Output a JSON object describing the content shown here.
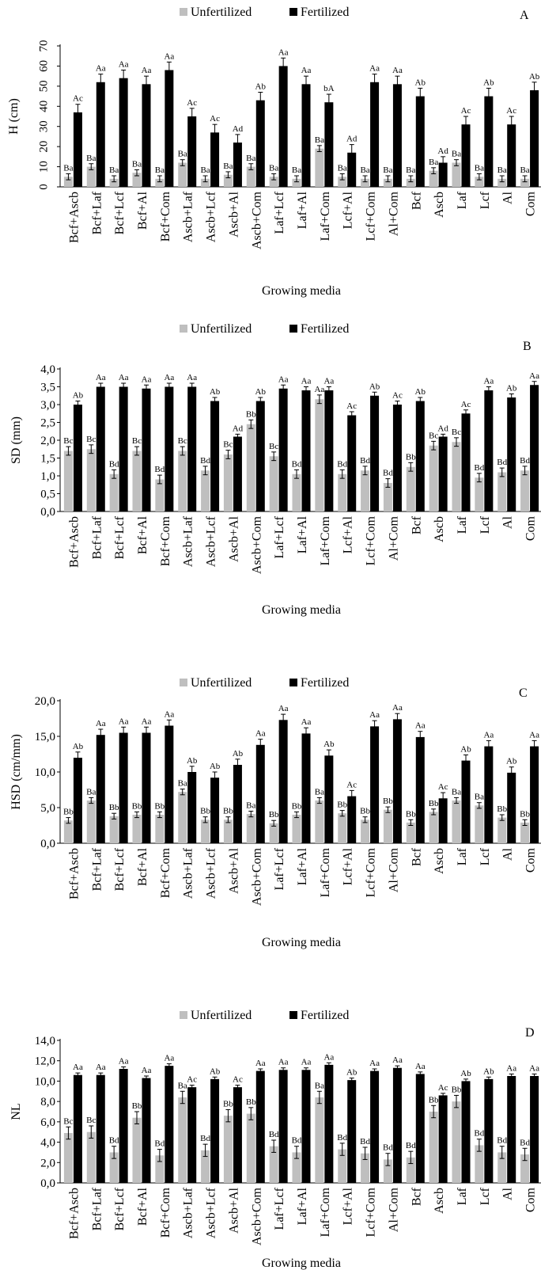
{
  "legend": {
    "unfertilized": "Unfertilized",
    "fertilized": "Fertilized"
  },
  "colors": {
    "unfertilized": "#bfbfbf",
    "fertilized": "#000000",
    "axis": "#000000"
  },
  "chart_data": [
    {
      "type": "bar",
      "title": "A",
      "xlabel": "Growing media",
      "ylabel": "H (cm)",
      "ylim": [
        0,
        70
      ],
      "yticks": [
        "0",
        "10",
        "20",
        "30",
        "40",
        "50",
        "60",
        "70"
      ],
      "legend_position": "top",
      "categories": [
        "Bcf+Ascb",
        "Bcf+Laf",
        "Bcf+Lcf",
        "Bcf+Al",
        "Bcf+Com",
        "Ascb+Laf",
        "Ascb+Lcf",
        "Ascb+Al",
        "Ascb+Com",
        "Laf+Lcf",
        "Laf+Al",
        "Laf+Com",
        "Lcf+Al",
        "Lcf+Com",
        "Al+Com",
        "Bcf",
        "Ascb",
        "Laf",
        "Lcf",
        "Al",
        "Com"
      ],
      "series": [
        {
          "name": "Unfertilized",
          "values": [
            5,
            10,
            4,
            7,
            4,
            12,
            4,
            6,
            10,
            5,
            4,
            19,
            5,
            4,
            4,
            4,
            8,
            12,
            5,
            4,
            4
          ],
          "errors": [
            1.5,
            1.5,
            1.5,
            1.5,
            1.5,
            1.5,
            1.5,
            1.5,
            1.5,
            1.5,
            1.5,
            1.5,
            1.5,
            1.5,
            1.5,
            1.5,
            1.5,
            1.5,
            1.5,
            1.5,
            1.5
          ],
          "labels": [
            "Ba",
            "Ba",
            "Ba",
            "Ba",
            "Ba",
            "Ba",
            "Ba",
            "Ba",
            "Ba",
            "Ba",
            "Ba",
            "Ba",
            "Ba",
            "Ba",
            "Ba",
            "Ba",
            "Ba",
            "Ba",
            "Ba",
            "Ba",
            "Ba"
          ]
        },
        {
          "name": "Fertilized",
          "values": [
            37,
            52,
            54,
            51,
            58,
            35,
            27,
            22,
            43,
            60,
            51,
            42,
            17,
            52,
            51,
            45,
            12,
            31,
            45,
            31,
            48
          ],
          "errors": [
            4,
            4,
            4,
            4,
            4,
            4,
            4,
            4,
            4,
            4,
            4,
            4,
            4,
            4,
            4,
            4,
            3,
            4,
            4,
            4,
            4
          ],
          "labels": [
            "Ac",
            "Aa",
            "Aa",
            "Aa",
            "Aa",
            "Ac",
            "Ac",
            "Ad",
            "Ab",
            "Aa",
            "Aa",
            "bA",
            "Ad",
            "Aa",
            "Aa",
            "Ab",
            "Ad",
            "Ac",
            "Ab",
            "Ac",
            "Ab"
          ]
        }
      ]
    },
    {
      "type": "bar",
      "title": "B",
      "xlabel": "Growing media",
      "ylabel": "SD (mm)",
      "ylim": [
        0,
        4
      ],
      "yticks": [
        "0,0",
        "0,5",
        "1,0",
        "1,5",
        "2,0",
        "2,5",
        "3,0",
        "3,5",
        "4,0"
      ],
      "legend_position": "top",
      "categories": [
        "Bcf+Ascb",
        "Bcf+Laf",
        "Bcf+Lcf",
        "Bcf+Al",
        "Bcf+Com",
        "Ascb+Laf",
        "Ascb+Lcf",
        "Ascb+Al",
        "Ascb+Com",
        "Laf+Lcf",
        "Laf+Al",
        "Laf+Com",
        "Lcf+Al",
        "Lcf+Com",
        "Al+Com",
        "Bcf",
        "Ascb",
        "Laf",
        "Lcf",
        "Al",
        "Com"
      ],
      "series": [
        {
          "name": "Unfertilized",
          "values": [
            1.7,
            1.75,
            1.05,
            1.7,
            0.9,
            1.7,
            1.15,
            1.6,
            2.45,
            1.55,
            1.05,
            3.15,
            1.05,
            1.15,
            0.8,
            1.25,
            1.85,
            1.95,
            0.95,
            1.1,
            1.15
          ],
          "errors": [
            0.12,
            0.12,
            0.12,
            0.12,
            0.12,
            0.12,
            0.12,
            0.12,
            0.12,
            0.12,
            0.12,
            0.12,
            0.12,
            0.12,
            0.12,
            0.12,
            0.12,
            0.12,
            0.12,
            0.12,
            0.12
          ],
          "labels": [
            "Bc",
            "Bc",
            "Bd",
            "Bc",
            "Bd",
            "Bc",
            "Bd",
            "Bc",
            "Bb",
            "Bc",
            "Bd",
            "Aa",
            "Bd",
            "Bd",
            "Bd",
            "Bb",
            "Bc",
            "Bc",
            "Bd",
            "Bd",
            "Bd"
          ]
        },
        {
          "name": "Fertilized",
          "values": [
            3.0,
            3.5,
            3.5,
            3.45,
            3.5,
            3.5,
            3.1,
            2.1,
            3.1,
            3.45,
            3.4,
            3.4,
            2.7,
            3.25,
            3.0,
            3.1,
            2.1,
            2.75,
            3.4,
            3.2,
            3.55
          ],
          "errors": [
            0.1,
            0.1,
            0.1,
            0.1,
            0.1,
            0.1,
            0.1,
            0.07,
            0.1,
            0.1,
            0.1,
            0.1,
            0.1,
            0.1,
            0.1,
            0.1,
            0.07,
            0.1,
            0.1,
            0.1,
            0.1
          ],
          "labels": [
            "Ab",
            "Aa",
            "Aa",
            "Aa",
            "Aa",
            "Aa",
            "Ab",
            "Ad",
            "Ab",
            "Aa",
            "Aa",
            "Aa",
            "Ac",
            "Ab",
            "Ac",
            "Ab",
            "Ad",
            "Ac",
            "Aa",
            "Ab",
            "Aa"
          ]
        }
      ]
    },
    {
      "type": "bar",
      "title": "C",
      "xlabel": "Growing media",
      "ylabel": "HSD (cm/mm)",
      "ylim": [
        0,
        20
      ],
      "yticks": [
        "0,0",
        "5,0",
        "10,0",
        "15,0",
        "20,0"
      ],
      "legend_position": "top",
      "categories": [
        "Bcf+Ascb",
        "Bcf+Laf",
        "Bcf+Lcf",
        "Bcf+Al",
        "Bcf+Com",
        "Ascb+Laf",
        "Ascb+Lcf",
        "Ascb+Al",
        "Ascb+Com",
        "Laf+Lcf",
        "Laf+Al",
        "Laf+Com",
        "Lcf+Al",
        "Lcf+Com",
        "Al+Com",
        "Bcf",
        "Ascb",
        "Laf",
        "Lcf",
        "Al",
        "Com"
      ],
      "series": [
        {
          "name": "Unfertilized",
          "values": [
            3.2,
            6.0,
            3.8,
            4.0,
            4.0,
            7.2,
            3.3,
            3.3,
            4.1,
            2.8,
            4.0,
            6.0,
            4.2,
            3.3,
            4.7,
            2.9,
            4.4,
            6.0,
            5.3,
            3.6,
            2.9
          ],
          "errors": [
            0.4,
            0.4,
            0.4,
            0.4,
            0.4,
            0.4,
            0.4,
            0.4,
            0.4,
            0.4,
            0.4,
            0.4,
            0.4,
            0.4,
            0.4,
            0.4,
            0.4,
            0.4,
            0.4,
            0.4,
            0.4
          ],
          "labels": [
            "Bb",
            "Ba",
            "Bb",
            "Bb",
            "Bb",
            "Ba",
            "Bb",
            "Bb",
            "Ba",
            "Bb",
            "Bb",
            "Ba",
            "Bb",
            "Bb",
            "Bb",
            "Bb",
            "Bb",
            "Ba",
            "Ba",
            "Bb",
            "Bb"
          ]
        },
        {
          "name": "Fertilized",
          "values": [
            12.0,
            15.2,
            15.5,
            15.5,
            16.5,
            10.0,
            9.2,
            11.0,
            13.8,
            17.3,
            15.4,
            12.3,
            6.6,
            16.4,
            17.4,
            14.9,
            6.3,
            11.6,
            13.6,
            9.9,
            13.6
          ],
          "errors": [
            0.8,
            0.8,
            0.8,
            0.8,
            0.8,
            0.8,
            0.8,
            0.8,
            0.8,
            0.8,
            0.8,
            0.8,
            0.8,
            0.8,
            0.8,
            0.8,
            0.8,
            0.8,
            0.8,
            0.8,
            0.8
          ],
          "labels": [
            "Ab",
            "Aa",
            "Aa",
            "Aa",
            "Aa",
            "Ab",
            "Ab",
            "Ab",
            "Aa",
            "Aa",
            "Aa",
            "Ab",
            "Ac",
            "Aa",
            "Aa",
            "Aa",
            "Ac",
            "Ab",
            "Aa",
            "Ab",
            "Aa"
          ]
        }
      ]
    },
    {
      "type": "bar",
      "title": "D",
      "xlabel": "Growing media",
      "ylabel": "NL",
      "ylim": [
        0,
        14
      ],
      "yticks": [
        "0,0",
        "2,0",
        "4,0",
        "6,0",
        "8,0",
        "10,0",
        "12,0",
        "14,0"
      ],
      "legend_position": "top",
      "categories": [
        "Bcf+Ascb",
        "Bcf+Laf",
        "Bcf+Lcf",
        "Bcf+Al",
        "Bcf+Com",
        "Ascb+Laf",
        "Ascb+Lcf",
        "Ascb+Al",
        "Ascb+Com",
        "Laf+Lcf",
        "Laf+Al",
        "Laf+Com",
        "Lcf+Al",
        "Lcf+Com",
        "Al+Com",
        "Bcf",
        "Ascb",
        "Laf",
        "Lcf",
        "Al",
        "Com"
      ],
      "series": [
        {
          "name": "Unfertilized",
          "values": [
            4.9,
            5.0,
            3.0,
            6.4,
            2.7,
            8.4,
            3.2,
            6.6,
            6.8,
            3.6,
            3.0,
            8.4,
            3.3,
            2.9,
            2.3,
            2.5,
            7.0,
            8.0,
            3.7,
            3.0,
            2.8
          ],
          "errors": [
            0.6,
            0.6,
            0.6,
            0.6,
            0.6,
            0.6,
            0.6,
            0.6,
            0.6,
            0.6,
            0.6,
            0.6,
            0.6,
            0.6,
            0.6,
            0.6,
            0.6,
            0.6,
            0.6,
            0.6,
            0.6
          ],
          "labels": [
            "Bc",
            "Bc",
            "Bd",
            "Bb",
            "Bd",
            "Ba",
            "Bd",
            "Bb",
            "Bb",
            "Bd",
            "Bd",
            "Ba",
            "Bd",
            "Bd",
            "Bd",
            "Bd",
            "Bb",
            "Bb",
            "Bd",
            "Bd",
            "Bd"
          ]
        },
        {
          "name": "Fertilized",
          "values": [
            10.6,
            10.6,
            11.2,
            10.3,
            11.5,
            9.4,
            10.2,
            9.4,
            11.0,
            11.1,
            11.1,
            11.6,
            10.1,
            11.0,
            11.3,
            10.7,
            8.6,
            10.0,
            10.2,
            10.5,
            10.5
          ],
          "errors": [
            0.2,
            0.2,
            0.2,
            0.2,
            0.2,
            0.2,
            0.2,
            0.2,
            0.2,
            0.2,
            0.2,
            0.2,
            0.2,
            0.2,
            0.2,
            0.2,
            0.2,
            0.2,
            0.2,
            0.2,
            0.2
          ],
          "labels": [
            "Aa",
            "Aa",
            "Aa",
            "Aa",
            "Aa",
            "Ac",
            "Ab",
            "Ac",
            "Aa",
            "Aa",
            "Aa",
            "Aa",
            "Ab",
            "Aa",
            "Aa",
            "Aa",
            "Ac",
            "Ab",
            "Ab",
            "Aa",
            "Aa"
          ]
        }
      ]
    }
  ]
}
